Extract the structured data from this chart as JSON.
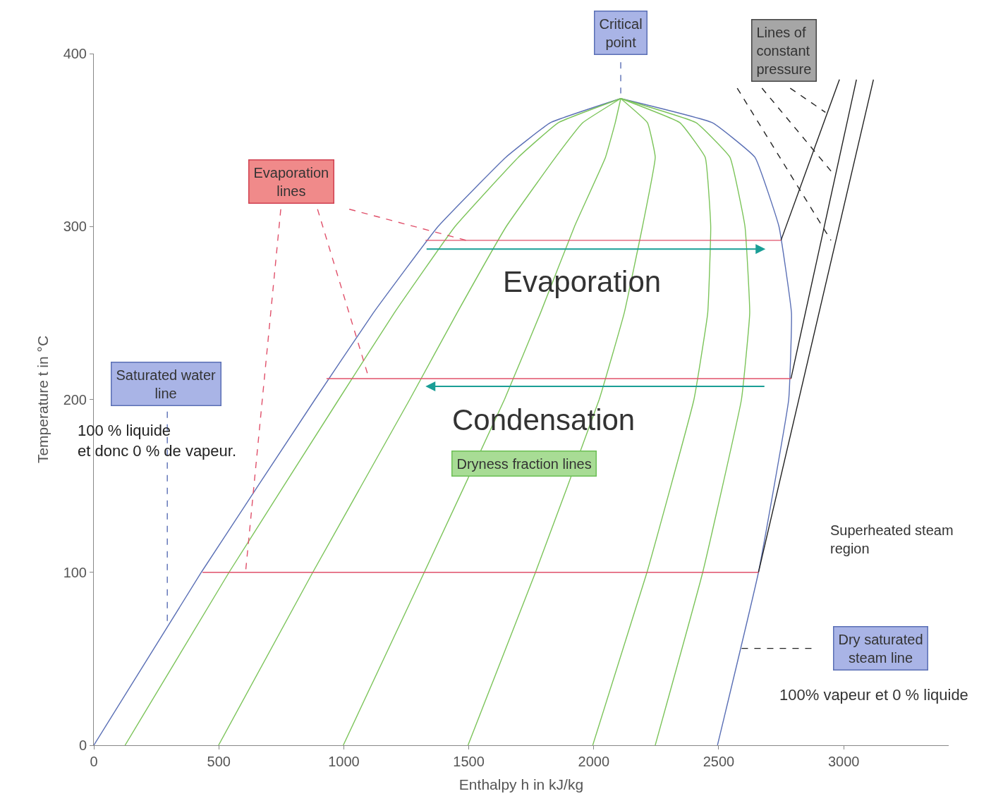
{
  "chart_data": {
    "type": "line",
    "xlabel": "Enthalpy h in kJ/kg",
    "ylabel": "Temperature t in °C",
    "xlim": [
      0,
      3420
    ],
    "ylim": [
      0,
      400
    ],
    "xticks": [
      0,
      500,
      1000,
      1500,
      2000,
      2500,
      3000
    ],
    "yticks": [
      0,
      100,
      200,
      300,
      400
    ],
    "series": [
      {
        "color": "#5a6fb5",
        "x": [
          0,
          430,
          885,
          1118,
          1377,
          1648,
          1826,
          2108
        ],
        "values": [
          0,
          100,
          200,
          250,
          300,
          340,
          360,
          374
        ]
      },
      {
        "color": "#5a6fb5",
        "x": [
          2108,
          2475,
          2645,
          2741,
          2791,
          2780,
          2659,
          2495
        ],
        "values": [
          374,
          360,
          340,
          300,
          250,
          200,
          100,
          0
        ]
      },
      {
        "color": "#7cc45a",
        "x": [
          125,
          541,
          980,
          1202,
          1445,
          1698,
          1858,
          2108
        ],
        "values": [
          0,
          100,
          200,
          250,
          300,
          340,
          360,
          374
        ]
      },
      {
        "color": "#7cc45a",
        "x": [
          499,
          876,
          1264,
          1453,
          1650,
          1847,
          1956,
          2108
        ],
        "values": [
          0,
          100,
          200,
          250,
          300,
          340,
          360,
          374
        ]
      },
      {
        "color": "#7cc45a",
        "x": [
          998,
          1322,
          1643,
          1787,
          1923,
          2047,
          2086,
          2108
        ],
        "values": [
          0,
          100,
          200,
          250,
          300,
          340,
          360,
          374
        ]
      },
      {
        "color": "#7cc45a",
        "x": [
          1497,
          1767,
          2022,
          2122,
          2195,
          2246,
          2215,
          2108
        ],
        "values": [
          0,
          100,
          200,
          250,
          300,
          340,
          360,
          374
        ]
      },
      {
        "color": "#7cc45a",
        "x": [
          1996,
          2213,
          2401,
          2456,
          2468,
          2446,
          2345,
          2108
        ],
        "values": [
          0,
          100,
          200,
          250,
          300,
          340,
          360,
          374
        ]
      },
      {
        "color": "#7cc45a",
        "x": [
          2246,
          2436,
          2591,
          2624,
          2605,
          2545,
          2410,
          2108
        ],
        "values": [
          0,
          100,
          200,
          250,
          300,
          340,
          360,
          374
        ]
      },
      {
        "color": "#222222",
        "x": [
          2749,
          2983
        ],
        "values": [
          292,
          385
        ]
      },
      {
        "color": "#222222",
        "x": [
          2789,
          3051
        ],
        "values": [
          212,
          385
        ]
      },
      {
        "color": "#222222",
        "x": [
          2659,
          3119
        ],
        "values": [
          100,
          385
        ]
      },
      {
        "color": "#e0506a",
        "x": [
          435,
          2659
        ],
        "values": [
          100,
          100
        ]
      },
      {
        "color": "#e0506a",
        "x": [
          931,
          2789
        ],
        "values": [
          212,
          212
        ]
      },
      {
        "color": "#e0506a",
        "x": [
          1327,
          2749
        ],
        "values": [
          292,
          292
        ]
      },
      {
        "color": "#5a6fb5",
        "line_style": "dashed",
        "x": [
          2108,
          2108
        ],
        "values": [
          395,
          377
        ]
      },
      {
        "color": "#222222",
        "line_style": "dashed",
        "x": [
          2786,
          2927
        ],
        "values": [
          380,
          366
        ]
      },
      {
        "color": "#222222",
        "line_style": "dashed",
        "x": [
          2673,
          2961
        ],
        "values": [
          380,
          330
        ]
      },
      {
        "color": "#222222",
        "line_style": "dashed",
        "x": [
          2574,
          2949
        ],
        "values": [
          380,
          292
        ]
      },
      {
        "color": "#e0506a",
        "line_style": "dashed",
        "x": [
          1022,
          1490
        ],
        "values": [
          310,
          292
        ]
      },
      {
        "color": "#e0506a",
        "line_style": "dashed",
        "x": [
          895,
          1101
        ],
        "values": [
          310,
          212
        ]
      },
      {
        "color": "#e0506a",
        "line_style": "dashed",
        "x": [
          748,
          607
        ],
        "values": [
          310,
          100
        ]
      },
      {
        "color": "#5a6fb5",
        "line_style": "dashed",
        "x": [
          294,
          294
        ],
        "values": [
          193,
          70
        ]
      },
      {
        "color": "#222222",
        "line_style": "dashed",
        "x": [
          2871,
          2588
        ],
        "values": [
          56,
          56
        ]
      }
    ],
    "annotations": [
      "Critical point",
      "Lines of constant pressure",
      "Evaporation lines",
      "Saturated water line",
      "Dryness fraction lines",
      "Dry saturated steam line",
      "Superheated steam region",
      "Evaporation",
      "Condensation",
      "100 % liquide et donc 0 % de vapeur.",
      "100% vapeur et 0 % liquide"
    ]
  }
}
